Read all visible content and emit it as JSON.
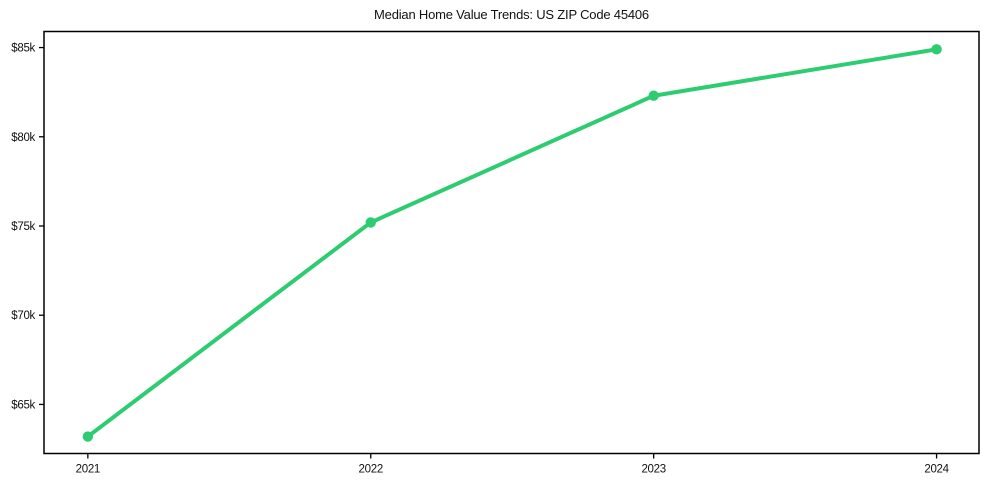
{
  "chart_data": {
    "type": "line",
    "title": "Median Home Value Trends: US ZIP Code 45406",
    "categories": [
      "2021",
      "2022",
      "2023",
      "2024"
    ],
    "x": [
      2021,
      2022,
      2023,
      2024
    ],
    "values": [
      63200,
      75200,
      82300,
      84900
    ],
    "xlabel": "",
    "ylabel": "",
    "y_ticks": [
      65000,
      70000,
      75000,
      80000,
      85000
    ],
    "y_tick_labels": [
      "$65k",
      "$70k",
      "$75k",
      "$80k",
      "$85k"
    ],
    "xlim": [
      2020.845,
      2024.15
    ],
    "ylim": [
      62250,
      85900
    ],
    "grid": false,
    "legend": null,
    "marker": "circle"
  },
  "colors": {
    "line": "#2ecc71",
    "marker": "#2ecc71",
    "axis": "#000000",
    "tick_text": "#111111",
    "background": "#ffffff"
  }
}
